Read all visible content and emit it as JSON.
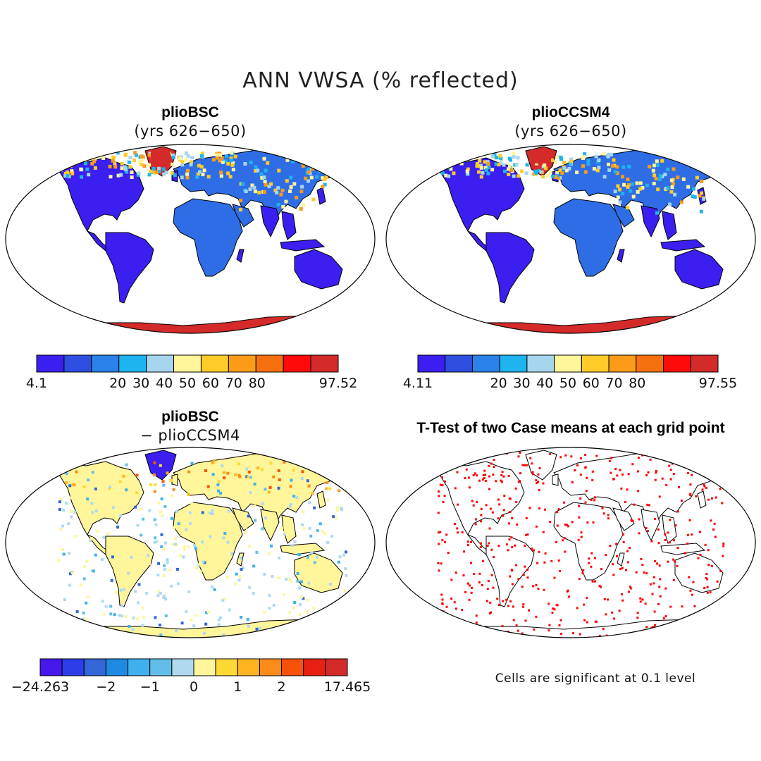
{
  "title": "ANN VWSA (% reflected)",
  "panels": {
    "top_left": {
      "title": "plioBSC",
      "subtitle": "(yrs 626−650)",
      "colorbar": {
        "colors": [
          "#3a1ff0",
          "#2e4fe0",
          "#2a82ea",
          "#1db4ef",
          "#a6d6ee",
          "#fff59a",
          "#fecb28",
          "#fb9b18",
          "#f7700e",
          "#fe0a0a",
          "#d42a2a"
        ],
        "tick_labels": [
          "4.1",
          "20",
          "30",
          "40",
          "50",
          "60",
          "70",
          "80",
          "97.52"
        ]
      }
    },
    "top_right": {
      "title": "plioCCSM4",
      "subtitle": "(yrs 626−650)",
      "colorbar": {
        "colors": [
          "#3a1ff0",
          "#2e4fe0",
          "#2a82ea",
          "#1db4ef",
          "#a6d6ee",
          "#fff59a",
          "#fecb28",
          "#fb9b18",
          "#f7700e",
          "#fe0a0a",
          "#d42a2a"
        ],
        "tick_labels": [
          "4.11",
          "20",
          "30",
          "40",
          "50",
          "60",
          "70",
          "80",
          "97.55"
        ]
      }
    },
    "bottom_left": {
      "title": "plioBSC",
      "subtitle": "− plioCCSM4",
      "colorbar": {
        "colors": [
          "#4518ec",
          "#2c3ee9",
          "#3366d6",
          "#1f8ae2",
          "#3fb0ee",
          "#62bee8",
          "#aed9ef",
          "#fff59a",
          "#fed936",
          "#feb321",
          "#fb8b1a",
          "#f7520c",
          "#e82014",
          "#d42a2a"
        ],
        "tick_labels": [
          "−24.263",
          "−2",
          "−1",
          "0",
          "1",
          "2",
          "17.465"
        ]
      }
    },
    "bottom_right": {
      "title": "T-Test of two Case means at each grid point",
      "note": "Cells are significant at 0.1 level",
      "dot_color": "#ff0000"
    }
  },
  "land_colors": {
    "low": "#3a1ff0",
    "mid": "#2e6de6",
    "high_lat": "#fecb28",
    "ice": "#d42a2a",
    "diff_base": "#fff59a",
    "diff_cool": "#a6d6ee"
  }
}
